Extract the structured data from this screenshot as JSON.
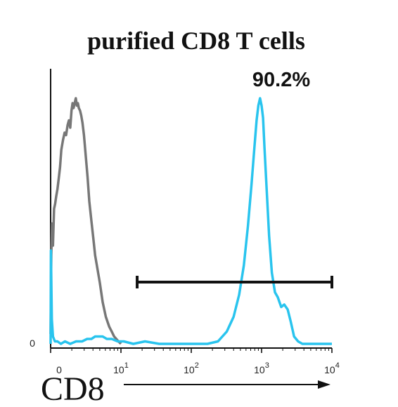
{
  "chart_data": {
    "type": "line",
    "title": "purified CD8 T cells",
    "xlabel": "CD8",
    "ylabel": "",
    "x_scale": "log",
    "xlim": [
      0,
      10000
    ],
    "ylim": [
      0,
      100
    ],
    "y_tick_label": "0",
    "x_tick_labels": [
      {
        "value": 0,
        "label": "0"
      },
      {
        "value": 10,
        "label": "10",
        "exp": "1"
      },
      {
        "value": 100,
        "label": "10",
        "exp": "2"
      },
      {
        "value": 1000,
        "label": "10",
        "exp": "3"
      },
      {
        "value": 10000,
        "label": "10",
        "exp": "4"
      }
    ],
    "gate": {
      "x_start": 17,
      "x_end": 10000,
      "label": "90.2%"
    },
    "series": [
      {
        "color": "#777777",
        "x": [
          1.0,
          1.02,
          1.05,
          1.08,
          1.12,
          1.16,
          1.2,
          1.25,
          1.3,
          1.36,
          1.42,
          1.5,
          1.58,
          1.66,
          1.74,
          1.82,
          1.9,
          1.98,
          2.05,
          2.12,
          2.2,
          2.28,
          2.36,
          2.44,
          2.52,
          2.62,
          2.72,
          2.84,
          2.98,
          3.15,
          3.35,
          3.55,
          3.8,
          4.05,
          4.3,
          4.6,
          5.0,
          5.5,
          6.1,
          6.8,
          7.4,
          8.0,
          8.6,
          9.2,
          10.0
        ],
        "y": [
          4,
          36,
          49,
          40,
          55,
          57,
          60,
          63,
          67,
          72,
          79,
          83,
          86,
          85,
          89,
          91,
          88,
          95,
          98,
          96,
          98,
          100,
          97,
          98,
          96,
          95,
          93,
          90,
          85,
          77,
          68,
          58,
          50,
          43,
          36,
          31,
          25,
          17,
          11,
          7,
          5,
          3,
          2,
          1,
          0
        ]
      },
      {
        "color": "#29c4ee",
        "x": [
          1.0,
          1.01,
          1.04,
          1.08,
          1.15,
          1.25,
          1.4,
          1.6,
          1.9,
          2.3,
          2.8,
          3.3,
          3.8,
          4.3,
          4.9,
          5.5,
          6.3,
          7.4,
          9.0,
          11,
          15,
          22,
          35,
          60,
          110,
          170,
          240,
          320,
          400,
          480,
          560,
          640,
          720,
          790,
          850,
          900,
          950,
          1000,
          1050,
          1100,
          1180,
          1280,
          1400,
          1550,
          1700,
          1900,
          2100,
          2350,
          2600,
          2900,
          3300,
          3800,
          4500,
          6000,
          8000,
          10000
        ],
        "y": [
          0,
          38,
          10,
          3,
          1,
          1,
          0,
          1,
          0,
          1,
          1,
          2,
          2,
          3,
          3,
          3,
          2,
          2,
          1,
          1,
          0,
          1,
          0,
          0,
          0,
          0,
          1,
          5,
          11,
          20,
          32,
          48,
          65,
          80,
          91,
          97,
          100,
          97,
          92,
          80,
          63,
          44,
          29,
          21,
          19,
          15,
          16,
          14,
          9,
          3,
          1,
          0,
          0,
          0,
          0,
          0
        ]
      }
    ]
  }
}
